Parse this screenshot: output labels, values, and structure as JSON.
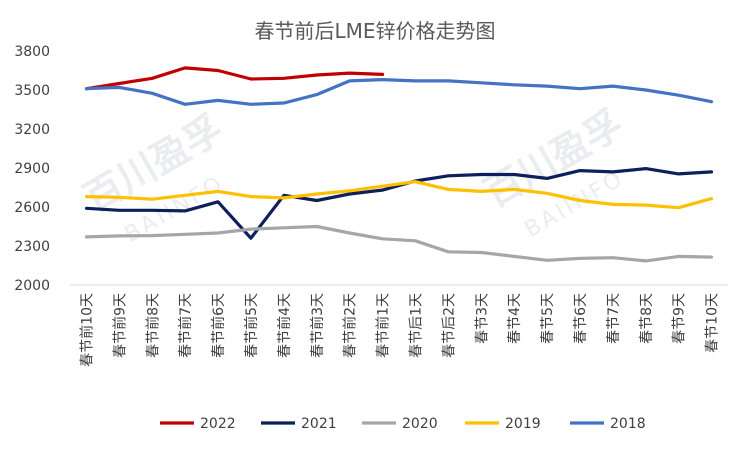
{
  "chart_data": {
    "type": "line",
    "title": "春节前后LME锌价格走势图",
    "watermark": [
      "百川盈孚",
      "BAIINFO"
    ],
    "ylim": [
      2000,
      3800
    ],
    "yticks": [
      2000,
      2300,
      2600,
      2900,
      3200,
      3500,
      3800
    ],
    "grid": false,
    "legend_position": "bottom",
    "categories": [
      "春节前10天",
      "春节前9天",
      "春节前8天",
      "春节前7天",
      "春节前6天",
      "春节前5天",
      "春节前4天",
      "春节前3天",
      "春节前2天",
      "春节前1天",
      "春节后1天",
      "春节后2天",
      "春节3天",
      "春节4天",
      "春节5天",
      "春节6天",
      "春节7天",
      "春节8天",
      "春节9天",
      "春节10天"
    ],
    "series": [
      {
        "name": "2022",
        "color": "#c00000",
        "values": [
          3510,
          3550,
          3590,
          3670,
          3650,
          3585,
          3590,
          3615,
          3630,
          3620,
          null,
          null,
          null,
          null,
          null,
          null,
          null,
          null,
          null,
          null
        ]
      },
      {
        "name": "2021",
        "color": "#0d1f5c",
        "values": [
          2590,
          2575,
          2575,
          2570,
          2640,
          2360,
          2690,
          2650,
          2700,
          2730,
          2800,
          2840,
          2850,
          2850,
          2820,
          2880,
          2870,
          2895,
          2855,
          2870
        ]
      },
      {
        "name": "2020",
        "color": "#a6a6a6",
        "values": [
          2370,
          2378,
          2380,
          2390,
          2400,
          2430,
          2440,
          2450,
          2400,
          2355,
          2340,
          2255,
          2250,
          2220,
          2190,
          2205,
          2210,
          2185,
          2220,
          2215
        ]
      },
      {
        "name": "2019",
        "color": "#ffc000",
        "values": [
          2680,
          2675,
          2660,
          2690,
          2720,
          2680,
          2670,
          2700,
          2725,
          2760,
          2795,
          2735,
          2720,
          2735,
          2705,
          2650,
          2620,
          2615,
          2595,
          2665
        ]
      },
      {
        "name": "2018",
        "color": "#4472c4",
        "values": [
          3510,
          3520,
          3475,
          3390,
          3420,
          3390,
          3400,
          3465,
          3570,
          3580,
          3570,
          3570,
          3555,
          3540,
          3530,
          3510,
          3530,
          3500,
          3460,
          3410
        ]
      }
    ]
  }
}
